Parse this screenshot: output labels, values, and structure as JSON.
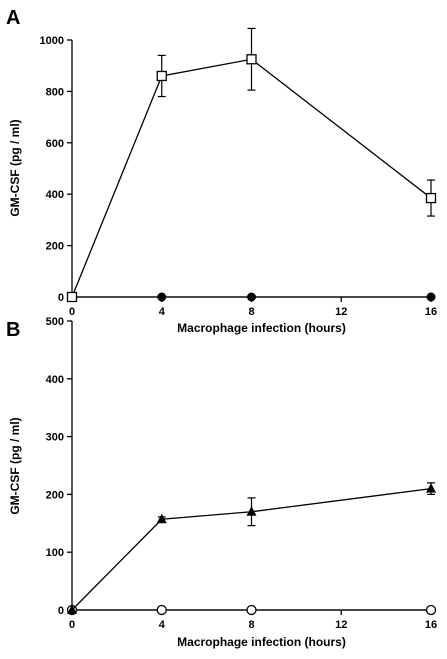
{
  "chart_data": [
    {
      "panel": "A",
      "type": "line",
      "xlabel": "Macrophage infection (hours)",
      "ylabel": "GM-CSF (pg / ml)",
      "xlim": [
        0,
        16
      ],
      "ylim": [
        0,
        1000
      ],
      "xticks": [
        0,
        4,
        8,
        12,
        16
      ],
      "yticks": [
        0,
        200,
        400,
        600,
        800,
        1000
      ],
      "series": [
        {
          "marker": "open-square",
          "x": [
            0,
            4,
            8,
            16
          ],
          "y": [
            0,
            860,
            925,
            385
          ],
          "err": [
            0,
            80,
            120,
            70
          ]
        },
        {
          "marker": "filled-circle",
          "x": [
            0,
            4,
            8,
            16
          ],
          "y": [
            0,
            0,
            0,
            0
          ],
          "err": [
            0,
            0,
            0,
            0
          ]
        }
      ]
    },
    {
      "panel": "B",
      "type": "line",
      "xlabel": "Macrophage infection (hours)",
      "ylabel": "GM-CSF (pg / ml)",
      "xlim": [
        0,
        16
      ],
      "ylim": [
        0,
        500
      ],
      "xticks": [
        0,
        4,
        8,
        12,
        16
      ],
      "yticks": [
        0,
        100,
        200,
        300,
        400,
        500
      ],
      "series": [
        {
          "marker": "filled-triangle",
          "x": [
            0,
            4,
            8,
            16
          ],
          "y": [
            0,
            157,
            170,
            210
          ],
          "err": [
            0,
            4,
            24,
            10
          ]
        },
        {
          "marker": "open-circle",
          "x": [
            0,
            4,
            8,
            16
          ],
          "y": [
            0,
            0,
            0,
            0
          ],
          "err": [
            0,
            0,
            0,
            0
          ]
        }
      ]
    }
  ]
}
